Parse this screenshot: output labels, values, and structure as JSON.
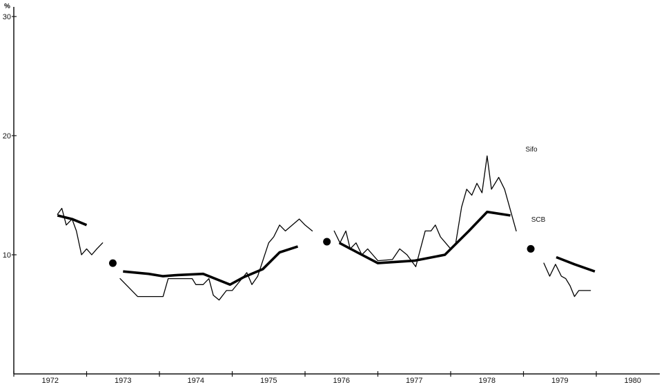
{
  "chart_data": {
    "type": "line",
    "title": "",
    "xlabel": "",
    "ylabel": "",
    "y_unit": "%",
    "ylim": [
      0,
      30
    ],
    "xlim": [
      1972,
      1980
    ],
    "y_ticks": [
      10,
      20,
      30
    ],
    "year_labels": [
      "1972",
      "1973",
      "1974",
      "1975",
      "1976",
      "1977",
      "1978",
      "1979",
      "1980"
    ],
    "grid": false,
    "series": [
      {
        "name": "Sifo",
        "style": "thin",
        "segments": [
          [
            [
              1972.6,
              13.4
            ],
            [
              1972.66,
              13.9
            ],
            [
              1972.72,
              12.5
            ],
            [
              1972.8,
              13.0
            ],
            [
              1972.86,
              12.0
            ],
            [
              1972.93,
              10.0
            ],
            [
              1973.0,
              10.5
            ],
            [
              1973.07,
              10.0
            ],
            [
              1973.14,
              10.5
            ],
            [
              1973.22,
              11.0
            ]
          ],
          [
            [
              1973.46,
              8.0
            ],
            [
              1973.7,
              6.5
            ],
            [
              1974.05,
              6.5
            ],
            [
              1974.12,
              8.0
            ],
            [
              1974.45,
              8.0
            ],
            [
              1974.5,
              7.5
            ],
            [
              1974.6,
              7.5
            ],
            [
              1974.68,
              8.0
            ],
            [
              1974.74,
              6.6
            ],
            [
              1974.82,
              6.2
            ],
            [
              1974.92,
              7.0
            ],
            [
              1975.0,
              7.0
            ],
            [
              1975.2,
              8.5
            ],
            [
              1975.27,
              7.5
            ],
            [
              1975.35,
              8.2
            ],
            [
              1975.5,
              11.0
            ],
            [
              1975.57,
              11.5
            ],
            [
              1975.65,
              12.5
            ],
            [
              1975.73,
              12.0
            ],
            [
              1975.92,
              13.0
            ],
            [
              1976.0,
              12.5
            ],
            [
              1976.1,
              12.0
            ]
          ],
          [
            [
              1976.4,
              12.0
            ],
            [
              1976.48,
              11.0
            ],
            [
              1976.56,
              12.0
            ],
            [
              1976.62,
              10.5
            ],
            [
              1976.7,
              11.0
            ],
            [
              1976.78,
              10.0
            ],
            [
              1976.86,
              10.5
            ],
            [
              1976.93,
              10.0
            ],
            [
              1977.0,
              9.5
            ],
            [
              1977.2,
              9.6
            ],
            [
              1977.3,
              10.5
            ],
            [
              1977.4,
              10.0
            ],
            [
              1977.52,
              9.0
            ],
            [
              1977.65,
              12.0
            ],
            [
              1977.73,
              12.0
            ],
            [
              1977.79,
              12.5
            ],
            [
              1977.86,
              11.5
            ],
            [
              1977.93,
              11.0
            ],
            [
              1978.0,
              10.5
            ],
            [
              1978.07,
              11.0
            ],
            [
              1978.15,
              14.0
            ],
            [
              1978.22,
              15.5
            ],
            [
              1978.29,
              15.0
            ],
            [
              1978.36,
              16.0
            ],
            [
              1978.43,
              15.2
            ],
            [
              1978.5,
              18.3
            ],
            [
              1978.56,
              15.5
            ],
            [
              1978.66,
              16.5
            ],
            [
              1978.74,
              15.5
            ],
            [
              1978.9,
              12.0
            ]
          ],
          [
            [
              1979.28,
              9.3
            ],
            [
              1979.36,
              8.2
            ],
            [
              1979.44,
              9.2
            ],
            [
              1979.52,
              8.2
            ],
            [
              1979.58,
              8.0
            ],
            [
              1979.64,
              7.4
            ],
            [
              1979.7,
              6.5
            ],
            [
              1979.76,
              7.0
            ],
            [
              1979.92,
              7.0
            ]
          ]
        ]
      },
      {
        "name": "SCB",
        "style": "thick",
        "segments": [
          [
            [
              1972.6,
              13.3
            ],
            [
              1972.8,
              13.0
            ],
            [
              1973.0,
              12.5
            ]
          ],
          [
            [
              1973.5,
              8.6
            ],
            [
              1973.85,
              8.4
            ],
            [
              1974.05,
              8.2
            ],
            [
              1974.25,
              8.3
            ],
            [
              1974.6,
              8.4
            ],
            [
              1974.97,
              7.5
            ],
            [
              1975.15,
              8.1
            ],
            [
              1975.42,
              8.8
            ],
            [
              1975.65,
              10.2
            ],
            [
              1975.9,
              10.7
            ]
          ],
          [
            [
              1976.47,
              11.0
            ],
            [
              1976.75,
              10.1
            ],
            [
              1977.0,
              9.3
            ],
            [
              1977.5,
              9.5
            ],
            [
              1977.92,
              10.0
            ],
            [
              1978.25,
              12.0
            ],
            [
              1978.5,
              13.6
            ],
            [
              1978.82,
              13.3
            ]
          ],
          [
            [
              1979.45,
              9.8
            ],
            [
              1979.7,
              9.2
            ],
            [
              1979.98,
              8.6
            ]
          ]
        ]
      }
    ],
    "points": [
      {
        "x": 1973.36,
        "y": 9.3
      },
      {
        "x": 1976.3,
        "y": 11.1
      },
      {
        "x": 1979.1,
        "y": 10.5
      }
    ]
  }
}
